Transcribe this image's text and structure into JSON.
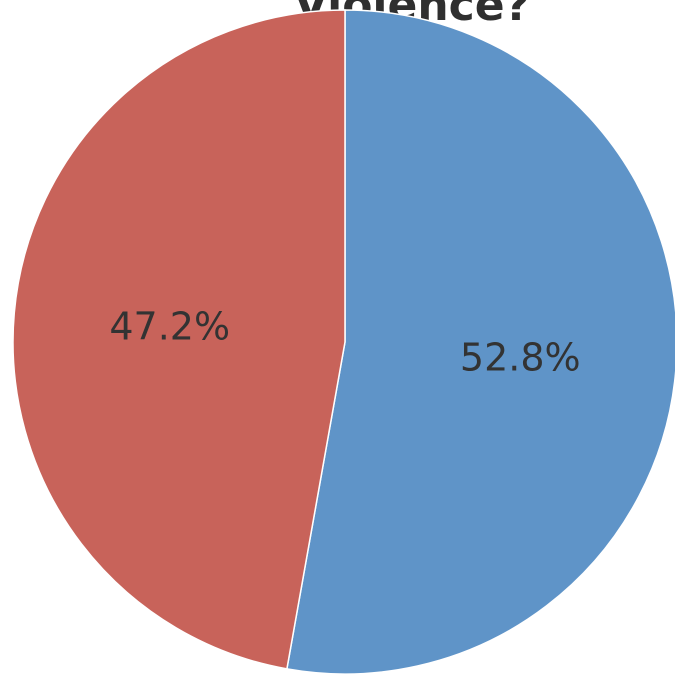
{
  "chart_data": {
    "type": "pie",
    "title": "Violence?",
    "slices": [
      {
        "value": 52.8,
        "label": "52.8%",
        "color": "#5f94c8"
      },
      {
        "value": 47.2,
        "label": "47.2%",
        "color": "#c8635a"
      }
    ],
    "start_angle_deg": 0,
    "direction": "clockwise",
    "legend": "none"
  }
}
